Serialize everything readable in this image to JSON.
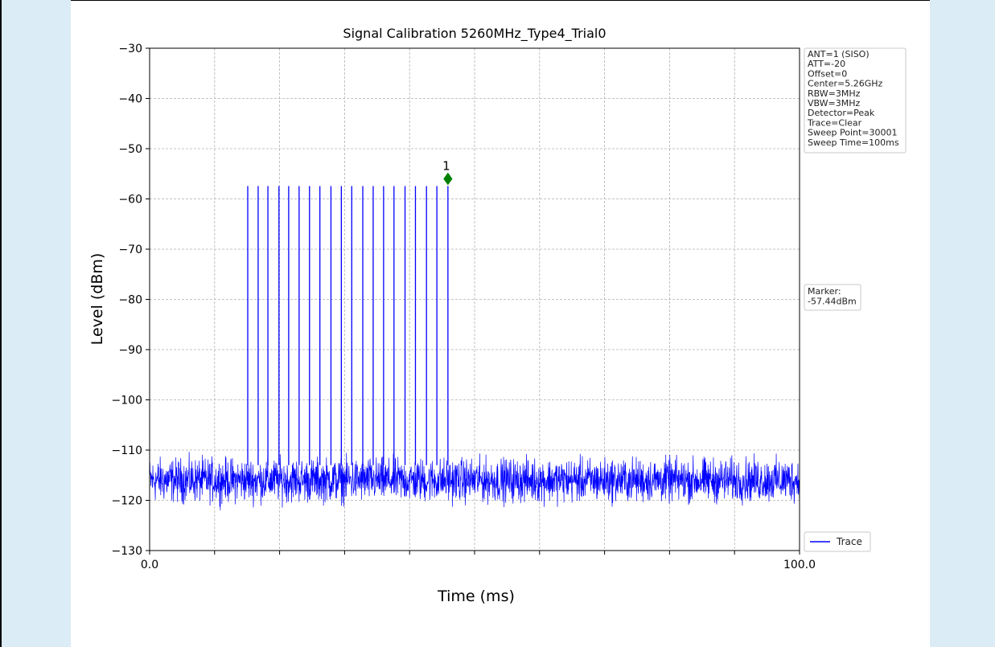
{
  "chart_data": {
    "type": "line",
    "title": "Signal Calibration 5260MHz_Type4_Trial0",
    "xlabel": "Time (ms)",
    "ylabel": "Level (dBm)",
    "xlim": [
      0,
      100
    ],
    "ylim": [
      -130,
      -30
    ],
    "x_tick_labels": [
      {
        "value": 0,
        "label": "0.0"
      },
      {
        "value": 100,
        "label": "100.0"
      }
    ],
    "x_minor_ticks": [
      10,
      20,
      30,
      40,
      50,
      60,
      70,
      80,
      90
    ],
    "y_ticks": [
      -30,
      -40,
      -50,
      -60,
      -70,
      -80,
      -90,
      -100,
      -110,
      -120,
      -130
    ],
    "grid": true,
    "series": [
      {
        "name": "Trace",
        "color": "#0000ff",
        "noise_floor": {
          "x_range": [
            0,
            100
          ],
          "level_min": -127,
          "level_max": -109,
          "level_mean": -116
        },
        "pulses": {
          "level": -57.44,
          "x": [
            15.1,
            16.7,
            18.2,
            19.9,
            21.4,
            23.0,
            24.6,
            26.2,
            27.9,
            29.5,
            31.1,
            32.8,
            34.4,
            36.0,
            37.6,
            39.3,
            40.9,
            42.6,
            44.2,
            45.9
          ]
        }
      }
    ],
    "marker": {
      "label": "1",
      "x": 45.9,
      "y": -56,
      "color": "#008000"
    },
    "legend": {
      "position": "bottom-right",
      "entries": [
        "Trace"
      ]
    },
    "info_box": {
      "position": "top-right",
      "lines": [
        "ANT=1 (SISO)",
        "ATT=-20",
        "Offset=0",
        "Center=5.26GHz",
        "RBW=3MHz",
        "VBW=3MHz",
        "Detector=Peak",
        "Trace=Clear",
        "Sweep Point=30001",
        "Sweep Time=100ms"
      ]
    },
    "marker_box": {
      "position": "right-middle",
      "lines": [
        "Marker:",
        "-57.44dBm"
      ]
    }
  }
}
